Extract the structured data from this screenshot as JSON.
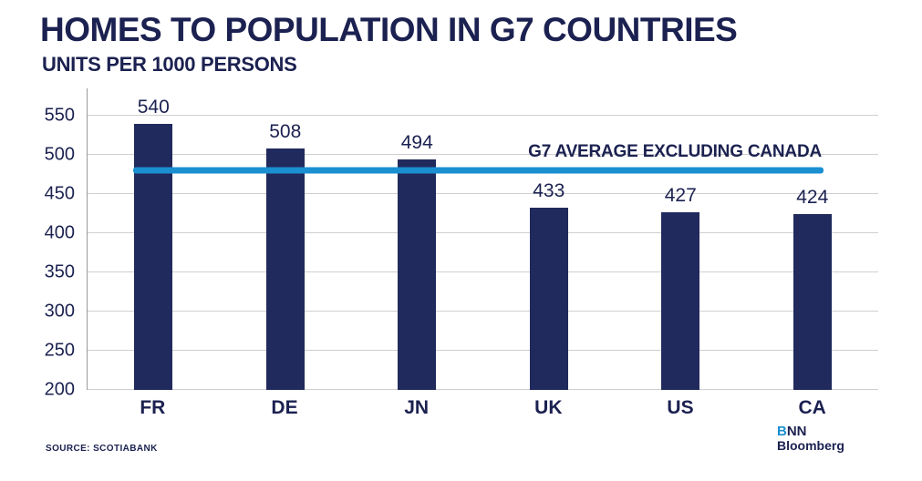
{
  "chart": {
    "title": "HOMES TO POPULATION IN G7 COUNTRIES",
    "subtitle": "UNITS PER 1000 PERSONS"
  },
  "chart_data": {
    "type": "bar",
    "categories": [
      "FR",
      "DE",
      "JN",
      "UK",
      "US",
      "CA"
    ],
    "values": [
      540,
      508,
      494,
      433,
      427,
      424
    ],
    "title": "HOMES TO POPULATION IN G7 COUNTRIES",
    "subtitle": "UNITS PER 1000 PERSONS",
    "xlabel": "",
    "ylabel": "UNITS PER 1000 PERSONS",
    "ylim": [
      200,
      550
    ],
    "yticks": [
      200,
      250,
      300,
      350,
      400,
      450,
      500,
      550
    ],
    "grid": true,
    "legend": "none",
    "bar_color": "#212a5c",
    "average_line": {
      "value": 480,
      "label": "G7 AVERAGE EXCLUDING CANADA",
      "color": "#1a8fd1"
    }
  },
  "footer": {
    "source": "SOURCE: SCOTIABANK"
  },
  "logo": {
    "b": "B",
    "nn": "NN",
    "bloomberg": "Bloomberg"
  },
  "colors": {
    "text_navy": "#1b2150",
    "bar_navy": "#212a5c",
    "line_blue": "#1a8fd1",
    "gridline": "#cfcfcf"
  }
}
